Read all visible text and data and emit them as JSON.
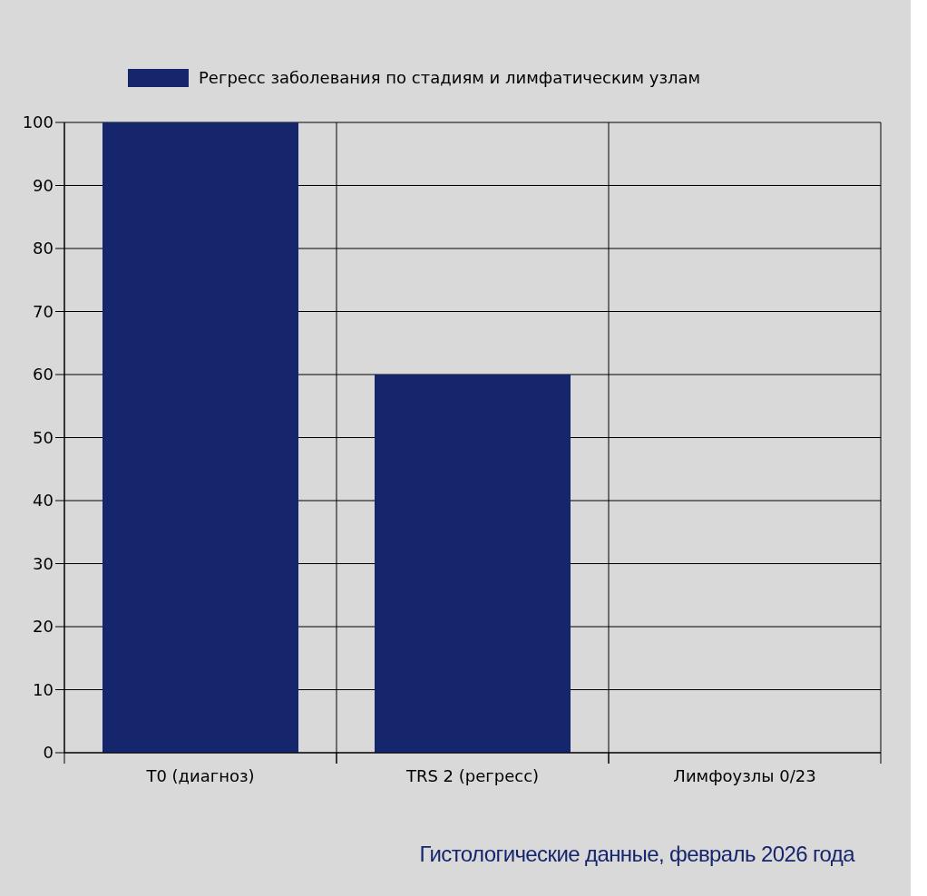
{
  "chart_data": {
    "type": "bar",
    "categories": [
      "T0 (диагноз)",
      "TRS 2 (регресс)",
      "Лимфоузлы 0/23"
    ],
    "series": [
      {
        "name": "Регресс заболевания по стадиям и лимфатическим узлам",
        "color": "#16266c",
        "values": [
          100,
          60,
          0
        ]
      }
    ],
    "ylim": [
      0,
      100
    ],
    "yticks": [
      0,
      10,
      20,
      30,
      40,
      50,
      60,
      70,
      80,
      90,
      100
    ],
    "grid": true,
    "legend": "top",
    "annotations": [
      "Гистологические данные, февраль 2026 года"
    ]
  }
}
